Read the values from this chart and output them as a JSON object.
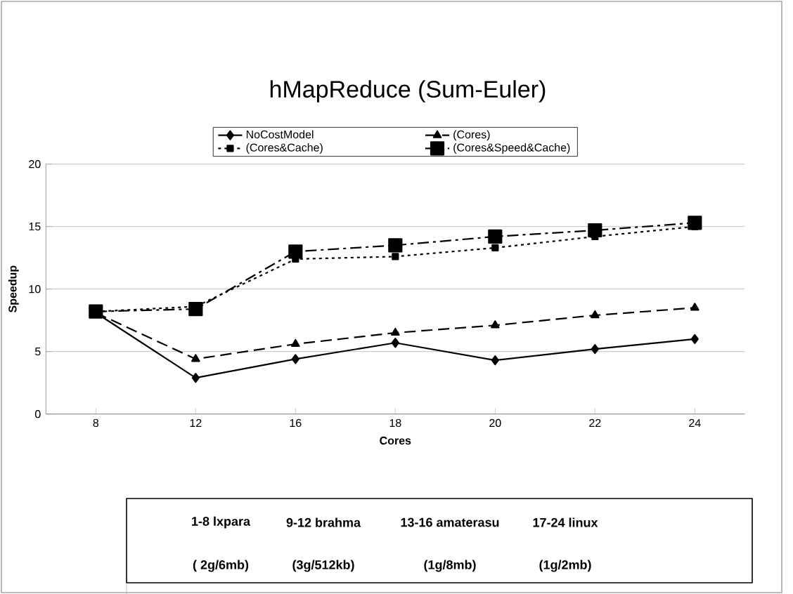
{
  "chart_data": {
    "type": "line",
    "title": "hMapReduce (Sum-Euler)",
    "xlabel": "Cores",
    "ylabel": "Speedup",
    "categories": [
      "8",
      "12",
      "16",
      "18",
      "20",
      "22",
      "24"
    ],
    "ylim": [
      0,
      20
    ],
    "yticks": [
      0,
      5,
      10,
      15,
      20
    ],
    "grid": "y",
    "legend": "top",
    "series": [
      {
        "name": "NoCostModel",
        "color": "#000000",
        "marker": "diamond",
        "line_style": "solid",
        "values": [
          8.1,
          2.9,
          4.4,
          5.7,
          4.3,
          5.2,
          6.0
        ]
      },
      {
        "name": "(Cores)",
        "color": "#000000",
        "marker": "triangle",
        "line_style": "dashed",
        "values": [
          8.1,
          4.4,
          5.6,
          6.5,
          7.1,
          7.9,
          8.5
        ]
      },
      {
        "name": "(Cores&Cache)",
        "color": "#000000",
        "marker": "square",
        "line_style": "dotted",
        "values": [
          8.2,
          8.6,
          12.4,
          12.6,
          13.3,
          14.2,
          15.0
        ]
      },
      {
        "name": "(Cores&Speed&Cache)",
        "color": "#000000",
        "marker": "square",
        "line_style": "dashdot",
        "values": [
          8.2,
          8.4,
          13.0,
          13.5,
          14.2,
          14.7,
          15.3
        ]
      }
    ],
    "annotations": [
      "1-8 lxpara",
      "( 2g/6mb)",
      "9-12 brahma",
      "(3g/512kb)",
      "13-16 amaterasu",
      "(1g/8mb)",
      "17-24 linux",
      "(1g/2mb)"
    ]
  }
}
